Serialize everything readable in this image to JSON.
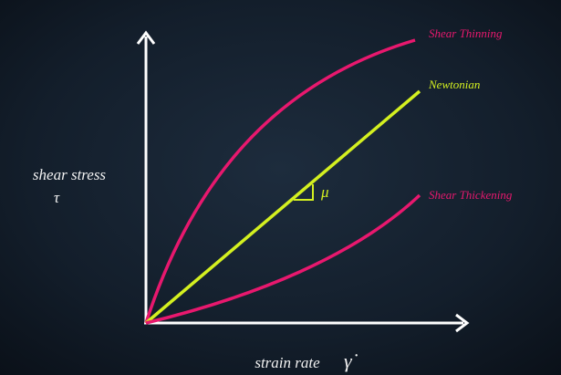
{
  "y_axis": {
    "label": "shear stress",
    "symbol": "τ"
  },
  "x_axis": {
    "label": "strain rate",
    "symbol": "γ̇"
  },
  "curves": [
    {
      "label": "Shear Thinning"
    },
    {
      "label": "Newtonian"
    },
    {
      "label": "Shear Thickening"
    }
  ],
  "slope_label": "μ"
}
